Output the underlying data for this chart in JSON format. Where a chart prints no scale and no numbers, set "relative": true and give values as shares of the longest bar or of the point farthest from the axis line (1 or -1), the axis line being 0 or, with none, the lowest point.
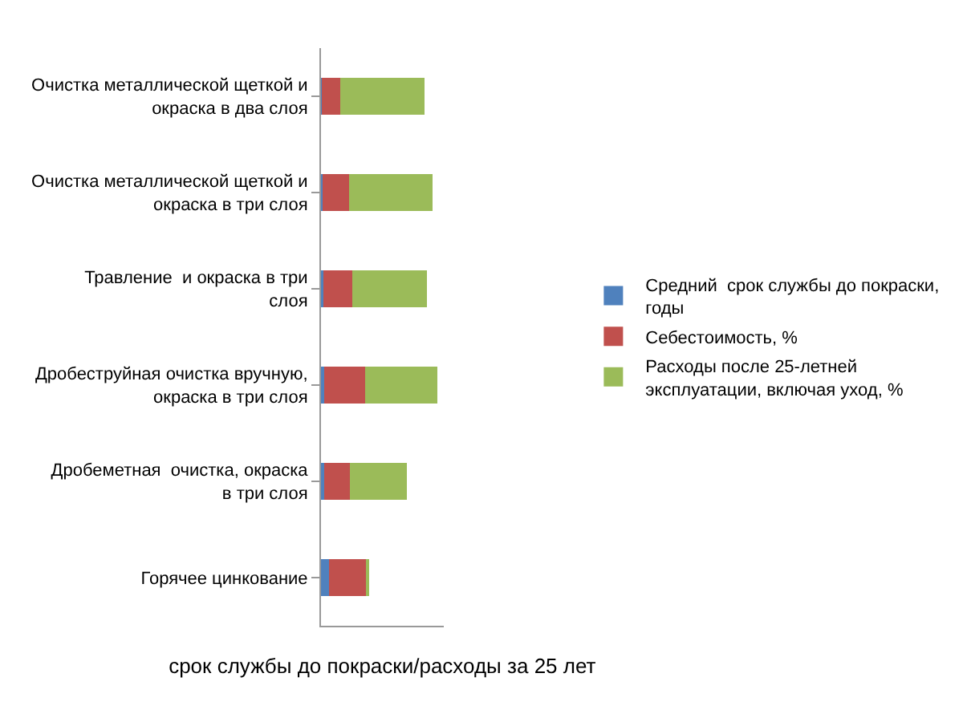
{
  "chart_data": {
    "type": "bar",
    "orientation": "horizontal",
    "stacked": true,
    "relative": true,
    "legend": "right",
    "xlabel": "срок службы до покраски/расходы за 25 лет",
    "categories": [
      "Очистка металлической щеткой и окраска в два слоя",
      "Очистка металлической щеткой и окраска в три слоя",
      "Травление  и окраска в три слоя",
      "Дробеструйная очистка вручную,  окраска в три слоя",
      "Дробеметная  очистка, окраска в три слоя",
      "Горячее цинкование"
    ],
    "series": [
      {
        "name": "Средний  срок службы до покраски, годы",
        "color": "#4f81bd",
        "values": [
          0.008,
          0.013,
          0.018,
          0.026,
          0.026,
          0.07
        ]
      },
      {
        "name": "Себестоимость, %",
        "color": "#c0504d",
        "values": [
          0.16,
          0.225,
          0.253,
          0.354,
          0.22,
          0.318
        ]
      },
      {
        "name": "Расходы после 25-летней эксплуатации, включая уход, %",
        "color": "#9bbb59",
        "values": [
          0.72,
          0.72,
          0.638,
          0.62,
          0.49,
          0.026
        ]
      }
    ]
  }
}
